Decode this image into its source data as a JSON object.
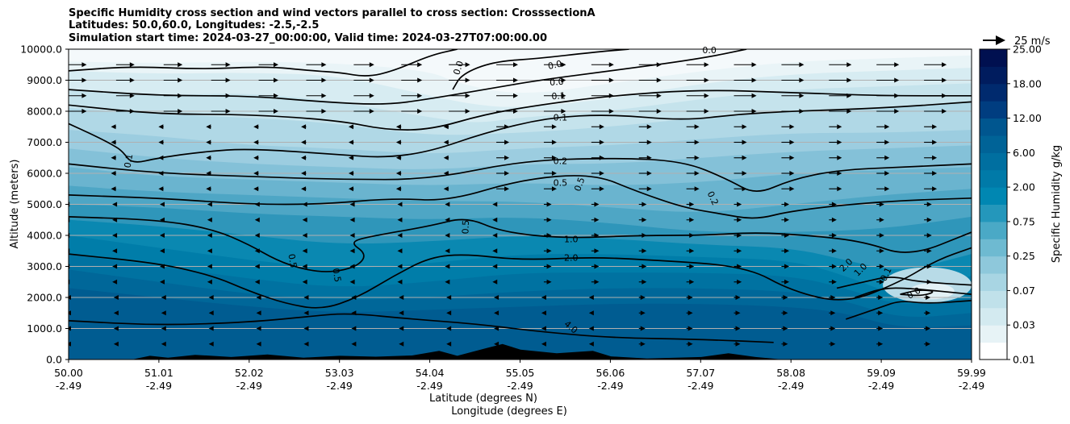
{
  "chart_data": {
    "type": "heatmap",
    "title_lines": [
      "Specific Humidity cross section and wind vectors parallel to cross section: CrosssectionA",
      "Latitudes: 50.0,60.0, Longitudes: -2.5,-2.5",
      "Simulation start time: 2024-03-27_00:00:00, Valid time: 2024-03-27T07:00:00.00"
    ],
    "ylabel": "Altitude (meters)",
    "xlabel_lat": "Latitude (degrees N)",
    "xlabel_lon": "Longitude (degrees E)",
    "ylim": [
      0,
      10000
    ],
    "yticks": [
      0,
      1000,
      2000,
      3000,
      4000,
      5000,
      6000,
      7000,
      8000,
      9000,
      10000
    ],
    "ytick_labels": [
      "0.0",
      "1000.0",
      "2000.0",
      "3000.0",
      "4000.0",
      "5000.0",
      "6000.0",
      "7000.0",
      "8000.0",
      "9000.0",
      "10000.0"
    ],
    "xtick_lat": [
      "50.00",
      "51.01",
      "52.02",
      "53.03",
      "54.04",
      "55.05",
      "56.06",
      "57.07",
      "58.08",
      "59.09",
      "59.99"
    ],
    "xtick_lon": [
      "-2.49",
      "-2.49",
      "-2.49",
      "-2.49",
      "-2.49",
      "-2.49",
      "-2.49",
      "-2.49",
      "-2.49",
      "-2.49",
      "-2.49"
    ],
    "grid": "horizontal",
    "colorbar": {
      "label": "Specific Humidity g/kg",
      "tick_labels": [
        "0.01",
        "0.03",
        "0.07",
        "0.25",
        "0.75",
        "2.00",
        "6.00",
        "12.00",
        "18.00",
        "25.00"
      ],
      "colors": [
        "#ffffff",
        "#e7f3f6",
        "#d3eaf0",
        "#c0e1ea",
        "#a8d5e3",
        "#8ec8db",
        "#6ebad1",
        "#4aa9c6",
        "#2497bb",
        "#0087b2",
        "#007aa8",
        "#006fa0",
        "#006397",
        "#00568f",
        "#003d80",
        "#002a6e",
        "#001c5e",
        "#001050"
      ]
    },
    "quiver_key": "25 m/s",
    "contour_labels": [
      {
        "text": "0.0",
        "lat": 54.31,
        "alt": 9400,
        "angle": -72
      },
      {
        "text": "0.0",
        "lat": 55.38,
        "alt": 9500,
        "angle": -12
      },
      {
        "text": "0.0",
        "lat": 55.4,
        "alt": 8950,
        "angle": -4
      },
      {
        "text": "0.0",
        "lat": 57.09,
        "alt": 9980,
        "angle": 0
      },
      {
        "text": "0.1",
        "lat": 55.42,
        "alt": 8500,
        "angle": -3
      },
      {
        "text": "0.1",
        "lat": 55.44,
        "alt": 7800,
        "angle": 0
      },
      {
        "text": "0.1",
        "lat": 50.66,
        "alt": 6400,
        "angle": -80
      },
      {
        "text": "0.2",
        "lat": 55.44,
        "alt": 6400,
        "angle": 0
      },
      {
        "text": "0.5",
        "lat": 55.44,
        "alt": 5700,
        "angle": 0
      },
      {
        "text": "0.5",
        "lat": 55.65,
        "alt": 5650,
        "angle": -70
      },
      {
        "text": "0.5",
        "lat": 54.39,
        "alt": 4270,
        "angle": -88
      },
      {
        "text": "0.5",
        "lat": 52.48,
        "alt": 3180,
        "angle": 80
      },
      {
        "text": "0.5",
        "lat": 52.97,
        "alt": 2720,
        "angle": 80
      },
      {
        "text": "0.2",
        "lat": 57.13,
        "alt": 5200,
        "angle": 65
      },
      {
        "text": "1.0",
        "lat": 55.56,
        "alt": 3880,
        "angle": 0
      },
      {
        "text": "2.0",
        "lat": 55.56,
        "alt": 3280,
        "angle": 0
      },
      {
        "text": "4.0",
        "lat": 55.56,
        "alt": 1050,
        "angle": 40
      },
      {
        "text": "2.0",
        "lat": 58.6,
        "alt": 3050,
        "angle": -45
      },
      {
        "text": "1.0",
        "lat": 58.76,
        "alt": 2900,
        "angle": -45
      },
      {
        "text": "0.1",
        "lat": 59.04,
        "alt": 2750,
        "angle": -65
      },
      {
        "text": "0.0",
        "lat": 59.35,
        "alt": 2150,
        "angle": -30
      }
    ]
  }
}
